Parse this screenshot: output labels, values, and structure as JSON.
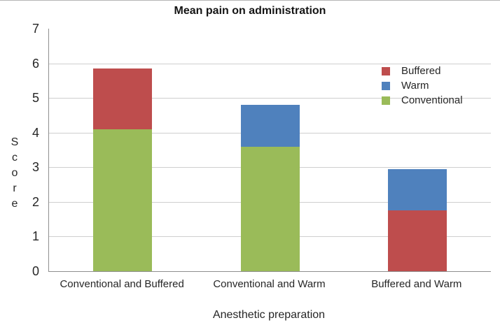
{
  "chart_data": {
    "type": "bar",
    "stacked": true,
    "title": "Mean pain on administration",
    "xlabel": "Anesthetic preparation",
    "ylabel": "Score",
    "ylim": [
      0,
      7
    ],
    "yticks": [
      0,
      1,
      2,
      3,
      4,
      5,
      6,
      7
    ],
    "grid": true,
    "gridline_color": "#cecece",
    "axis_line_color": "#8f8f8f",
    "legend_position": "upper-right-inside",
    "categories": [
      "Conventional and Buffered",
      "Conventional and Warm",
      "Buffered and Warm"
    ],
    "series": [
      {
        "name": "Conventional",
        "color": "#9ABB59",
        "values": [
          4.1,
          3.6,
          0
        ]
      },
      {
        "name": "Buffered",
        "color": "#BE4D4D",
        "values": [
          1.75,
          0,
          1.75
        ]
      },
      {
        "name": "Warm",
        "color": "#4F81BD",
        "values": [
          0,
          1.2,
          1.2
        ]
      }
    ],
    "stack_totals": [
      5.85,
      4.8,
      2.95
    ],
    "legend": [
      {
        "label": "Buffered",
        "color": "#BE4D4D"
      },
      {
        "label": "Warm",
        "color": "#4F81BD"
      },
      {
        "label": "Conventional",
        "color": "#9ABB59"
      }
    ]
  }
}
